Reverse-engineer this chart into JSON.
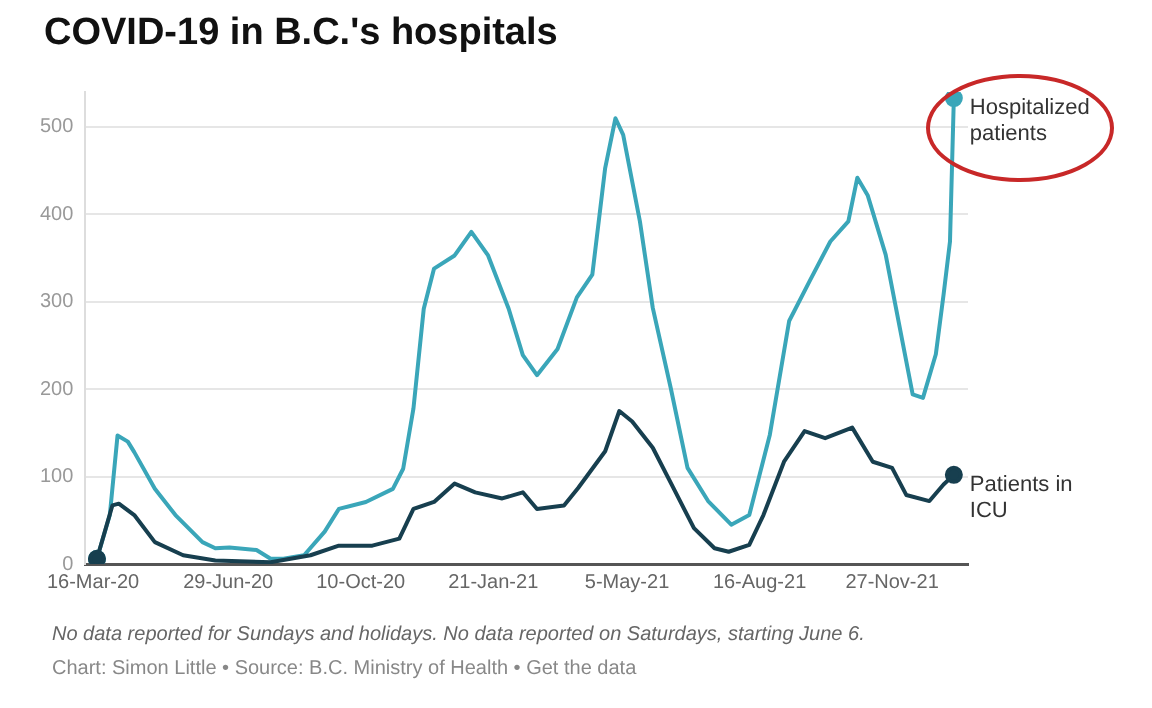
{
  "chart_data": {
    "type": "line",
    "title": "COVID-19 in B.C.'s hospitals",
    "annotations": [
      "No data reported for Sundays and holidays. No data reported on Saturdays, starting June 6.",
      "Chart: Simon Little • Source: B.C. Ministry of Health • Get the data"
    ],
    "xlim": [
      "2020-03-10",
      "2022-01-25"
    ],
    "xticks": [
      {
        "value": "2020-03-16",
        "label": "16-Mar-20"
      },
      {
        "value": "2020-06-29",
        "label": "29-Jun-20"
      },
      {
        "value": "2020-10-10",
        "label": "10-Oct-20"
      },
      {
        "value": "2021-01-21",
        "label": "21-Jan-21"
      },
      {
        "value": "2021-05-05",
        "label": "5-May-21"
      },
      {
        "value": "2021-08-16",
        "label": "16-Aug-21"
      },
      {
        "value": "2021-11-27",
        "label": "27-Nov-21"
      }
    ],
    "ylim": [
      0,
      540
    ],
    "yticks": [
      0,
      100,
      200,
      300,
      400,
      500
    ],
    "grid": "y",
    "legend": false,
    "line_style": "solid",
    "series": [
      {
        "name": "Hospitalized patients",
        "color": "#3aa6b9",
        "x": [
          "2020-03-19",
          "2020-03-29",
          "2020-04-04",
          "2020-04-12",
          "2020-04-17",
          "2020-05-03",
          "2020-05-19",
          "2020-06-09",
          "2020-06-19",
          "2020-06-30",
          "2020-07-21",
          "2020-08-01",
          "2020-08-11",
          "2020-08-27",
          "2020-09-12",
          "2020-09-23",
          "2020-10-14",
          "2020-11-04",
          "2020-11-12",
          "2020-11-20",
          "2020-11-28",
          "2020-12-06",
          "2020-12-22",
          "2021-01-04",
          "2021-01-17",
          "2021-02-02",
          "2021-02-13",
          "2021-02-24",
          "2021-03-12",
          "2021-03-27",
          "2021-04-08",
          "2021-04-18",
          "2021-04-26",
          "2021-05-02",
          "2021-05-15",
          "2021-05-25",
          "2021-06-08",
          "2021-06-21",
          "2021-07-07",
          "2021-07-25",
          "2021-08-08",
          "2021-08-24",
          "2021-09-08",
          "2021-09-24",
          "2021-10-10",
          "2021-10-24",
          "2021-10-31",
          "2021-11-08",
          "2021-11-22",
          "2021-11-30",
          "2021-12-13",
          "2021-12-21",
          "2021-12-31",
          "2022-01-06",
          "2022-01-11",
          "2022-01-14"
        ],
        "values": [
          6,
          56,
          147,
          140,
          128,
          86,
          56,
          25,
          18,
          19,
          16,
          6,
          6,
          10,
          37,
          63,
          71,
          86,
          109,
          178,
          292,
          338,
          353,
          380,
          353,
          292,
          239,
          216,
          246,
          305,
          331,
          453,
          510,
          491,
          392,
          293,
          201,
          110,
          72,
          45,
          56,
          148,
          278,
          324,
          369,
          392,
          442,
          422,
          354,
          293,
          194,
          190,
          240,
          308,
          369,
          533
        ]
      },
      {
        "name": "Patients in ICU",
        "color": "#173f4f",
        "x": [
          "2020-03-19",
          "2020-03-31",
          "2020-04-05",
          "2020-04-17",
          "2020-05-03",
          "2020-05-25",
          "2020-06-19",
          "2020-08-01",
          "2020-09-01",
          "2020-09-23",
          "2020-10-19",
          "2020-11-09",
          "2020-11-20",
          "2020-12-06",
          "2020-12-22",
          "2021-01-07",
          "2021-01-28",
          "2021-02-13",
          "2021-02-24",
          "2021-03-17",
          "2021-03-28",
          "2021-04-18",
          "2021-04-29",
          "2021-05-09",
          "2021-05-25",
          "2021-06-10",
          "2021-06-26",
          "2021-07-12",
          "2021-07-23",
          "2021-08-08",
          "2021-08-19",
          "2021-09-04",
          "2021-09-20",
          "2021-10-06",
          "2021-10-27",
          "2021-11-12",
          "2021-11-27",
          "2021-12-08",
          "2021-12-26",
          "2022-01-06",
          "2022-01-14"
        ],
        "values": [
          6,
          67,
          69,
          56,
          25,
          10,
          4,
          2,
          10,
          21,
          21,
          29,
          63,
          71,
          92,
          82,
          75,
          82,
          63,
          67,
          87,
          129,
          175,
          163,
          133,
          87,
          41,
          18,
          14,
          22,
          56,
          117,
          152,
          144,
          156,
          117,
          110,
          79,
          72,
          91,
          102
        ]
      }
    ]
  }
}
